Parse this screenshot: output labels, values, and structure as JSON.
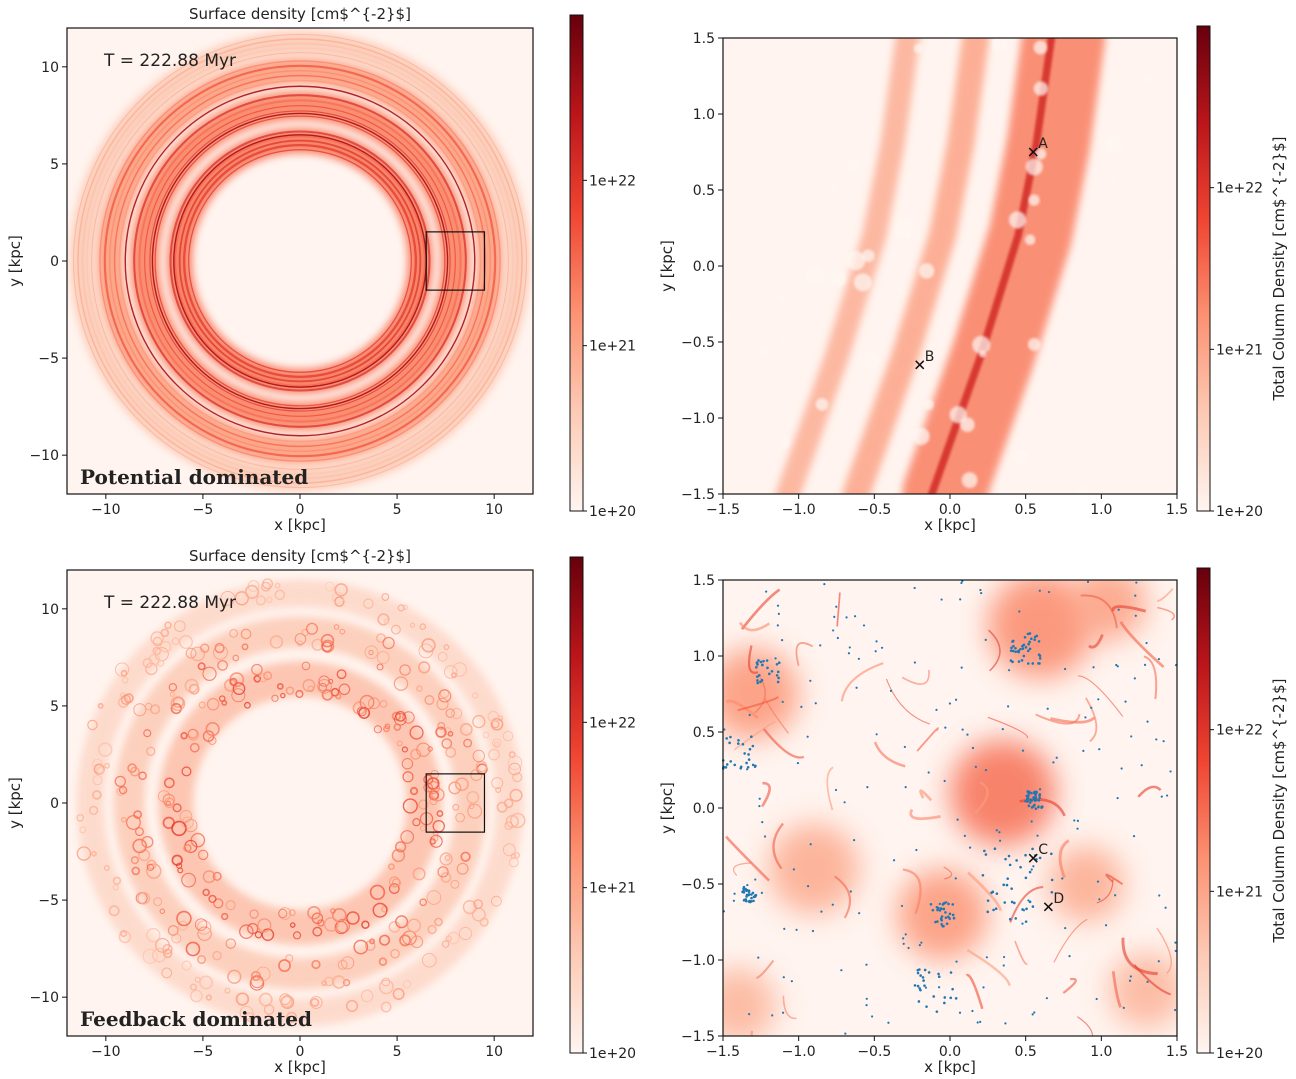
{
  "chart_data": [
    {
      "panel": "top-left",
      "type": "heatmap",
      "title": "Surface density [cm$^{-2}$]",
      "time_label": "T = 222.88 Myr",
      "regime_label": "Potential dominated",
      "xlabel": "x [kpc]",
      "ylabel": "y [kpc]",
      "xlim": [
        -12,
        12
      ],
      "ylim": [
        -12,
        12
      ],
      "xticks": [
        -10,
        -5,
        0,
        5,
        10
      ],
      "yticks": [
        -10,
        -5,
        0,
        5,
        10
      ],
      "xtick_labels": [
        "−10",
        "−5",
        "0",
        "5",
        "10"
      ],
      "ytick_labels": [
        "−10",
        "−5",
        "0",
        "5",
        "10"
      ],
      "colorbar": {
        "label": "",
        "scale": "log",
        "range": [
          1e+20,
          1e+23
        ],
        "ticks": [
          1e+20,
          1e+21,
          1e+22
        ],
        "tick_labels": [
          "1e+20",
          "1e+21",
          "1e+22"
        ],
        "colormap": "Reds"
      },
      "inset_box": {
        "x": [
          6.5,
          9.5
        ],
        "y": [
          -1.5,
          1.5
        ]
      },
      "morphology": "smooth-rings",
      "rings": [
        {
          "r": 6.2,
          "width": 1.3,
          "intensity": 0.85
        },
        {
          "r": 8.0,
          "width": 1.5,
          "intensity": 0.8
        },
        {
          "r": 9.8,
          "width": 1.4,
          "intensity": 0.65
        },
        {
          "r": 11.2,
          "width": 1.3,
          "intensity": 0.35
        }
      ]
    },
    {
      "panel": "top-right",
      "type": "heatmap",
      "title": "",
      "xlabel": "x [kpc]",
      "ylabel": "y [kpc]",
      "xlim": [
        -1.5,
        1.5
      ],
      "ylim": [
        -1.5,
        1.5
      ],
      "xticks": [
        -1.5,
        -1.0,
        -0.5,
        0.0,
        0.5,
        1.0,
        1.5
      ],
      "yticks": [
        -1.5,
        -1.0,
        -0.5,
        0.0,
        0.5,
        1.0,
        1.5
      ],
      "xtick_labels": [
        "−1.5",
        "−1.0",
        "−0.5",
        "0.0",
        "0.5",
        "1.0",
        "1.5"
      ],
      "ytick_labels": [
        "−1.5",
        "−1.0",
        "−0.5",
        "0.0",
        "0.5",
        "1.0",
        "1.5"
      ],
      "colorbar": {
        "label": "Total Column Density [cm$^{-2}$]",
        "scale": "log",
        "range": [
          1e+20,
          1e+23
        ],
        "ticks": [
          1e+20,
          1e+21,
          1e+22
        ],
        "tick_labels": [
          "1e+20",
          "1e+21",
          "1e+22"
        ],
        "colormap": "Reds"
      },
      "markers": [
        {
          "label": "A",
          "x": 0.55,
          "y": 0.75
        },
        {
          "label": "B",
          "x": -0.2,
          "y": -0.65
        }
      ],
      "morphology": "filament-bands",
      "spine": [
        [
          -0.12,
          -1.5
        ],
        [
          0.2,
          -0.6
        ],
        [
          0.45,
          0.2
        ],
        [
          0.57,
          0.8
        ],
        [
          0.67,
          1.5
        ]
      ],
      "bands": [
        {
          "offset": 0.08,
          "width": 0.55,
          "intensity": 0.6
        },
        {
          "offset": -0.5,
          "width": 0.18,
          "intensity": 0.45
        },
        {
          "offset": -0.95,
          "width": 0.16,
          "intensity": 0.4
        },
        {
          "offset": 0.0,
          "width": 0.05,
          "intensity": 0.95
        }
      ]
    },
    {
      "panel": "bottom-left",
      "type": "heatmap",
      "title": "Surface density [cm$^{-2}$]",
      "time_label": "T = 222.88 Myr",
      "regime_label": "Feedback dominated",
      "xlabel": "x [kpc]",
      "ylabel": "y [kpc]",
      "xlim": [
        -12,
        12
      ],
      "ylim": [
        -12,
        12
      ],
      "xticks": [
        -10,
        -5,
        0,
        5,
        10
      ],
      "yticks": [
        -10,
        -5,
        0,
        5,
        10
      ],
      "xtick_labels": [
        "−10",
        "−5",
        "0",
        "5",
        "10"
      ],
      "ytick_labels": [
        "−10",
        "−5",
        "0",
        "5",
        "10"
      ],
      "colorbar": {
        "label": "",
        "scale": "log",
        "range": [
          1e+20,
          1e+23
        ],
        "ticks": [
          1e+20,
          1e+21,
          1e+22
        ],
        "tick_labels": [
          "1e+20",
          "1e+21",
          "1e+22"
        ],
        "colormap": "Reds"
      },
      "inset_box": {
        "x": [
          6.5,
          9.5
        ],
        "y": [
          -1.5,
          1.5
        ]
      },
      "morphology": "clumpy-rings",
      "rings": [
        {
          "r": 6.4,
          "width": 1.8,
          "intensity": 0.6
        },
        {
          "r": 8.8,
          "width": 1.6,
          "intensity": 0.5
        },
        {
          "r": 10.8,
          "width": 1.4,
          "intensity": 0.35
        }
      ]
    },
    {
      "panel": "bottom-right",
      "type": "heatmap",
      "title": "",
      "xlabel": "x [kpc]",
      "ylabel": "y [kpc]",
      "xlim": [
        -1.5,
        1.5
      ],
      "ylim": [
        -1.5,
        1.5
      ],
      "xticks": [
        -1.5,
        -1.0,
        -0.5,
        0.0,
        0.5,
        1.0,
        1.5
      ],
      "yticks": [
        -1.5,
        -1.0,
        -0.5,
        0.0,
        0.5,
        1.0,
        1.5
      ],
      "xtick_labels": [
        "−1.5",
        "−1.0",
        "−0.5",
        "0.0",
        "0.5",
        "1.0",
        "1.5"
      ],
      "ytick_labels": [
        "−1.5",
        "−1.0",
        "−0.5",
        "0.0",
        "0.5",
        "1.0",
        "1.5"
      ],
      "colorbar": {
        "label": "Total Column Density [cm$^{-2}$]",
        "scale": "log",
        "range": [
          1e+20,
          1e+23
        ],
        "ticks": [
          1e+20,
          1e+21,
          1e+22
        ],
        "tick_labels": [
          "1e+20",
          "1e+21",
          "1e+22"
        ],
        "colormap": "Reds"
      },
      "markers": [
        {
          "label": "C",
          "x": 0.55,
          "y": -0.33
        },
        {
          "label": "D",
          "x": 0.65,
          "y": -0.65
        }
      ],
      "morphology": "turbulent",
      "dense_clumps": [
        {
          "x": 0.35,
          "y": 0.1,
          "r": 0.35,
          "intensity": 0.7
        },
        {
          "x": 0.6,
          "y": 1.2,
          "r": 0.35,
          "intensity": 0.6
        },
        {
          "x": -1.3,
          "y": 0.75,
          "r": 0.3,
          "intensity": 0.55
        },
        {
          "x": -0.05,
          "y": -0.7,
          "r": 0.3,
          "intensity": 0.55
        },
        {
          "x": 1.05,
          "y": 1.35,
          "r": 0.25,
          "intensity": 0.5
        },
        {
          "x": -0.9,
          "y": -0.4,
          "r": 0.3,
          "intensity": 0.45
        },
        {
          "x": 0.9,
          "y": -0.5,
          "r": 0.25,
          "intensity": 0.45
        },
        {
          "x": -1.4,
          "y": -1.3,
          "r": 0.25,
          "intensity": 0.4
        },
        {
          "x": 1.3,
          "y": -1.2,
          "r": 0.25,
          "intensity": 0.4
        }
      ],
      "star_particles": {
        "color": "#1f77b4",
        "clusters": [
          {
            "x": 0.55,
            "y": 0.05,
            "spread": 0.06,
            "count": 40
          },
          {
            "x": 0.5,
            "y": 1.05,
            "spread": 0.1,
            "count": 40
          },
          {
            "x": -1.33,
            "y": -0.57,
            "spread": 0.05,
            "count": 30
          },
          {
            "x": -0.05,
            "y": -0.7,
            "spread": 0.08,
            "count": 30
          },
          {
            "x": -1.2,
            "y": 0.9,
            "spread": 0.08,
            "count": 25
          },
          {
            "x": -1.4,
            "y": 0.35,
            "spread": 0.12,
            "count": 25
          },
          {
            "x": -0.1,
            "y": -1.2,
            "spread": 0.15,
            "count": 25
          },
          {
            "x": 0.45,
            "y": -0.5,
            "spread": 0.25,
            "count": 40
          }
        ],
        "scatter_count": 200
      }
    }
  ]
}
